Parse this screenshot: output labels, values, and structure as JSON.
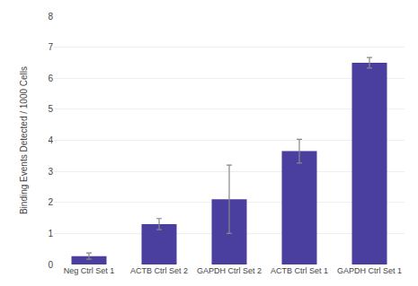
{
  "chart_data": {
    "type": "bar",
    "categories": [
      "Neg Ctrl Set 1",
      "ACTB Ctrl Set 2",
      "GAPDH Ctrl Set 2",
      "ACTB Ctrl Set 1",
      "GAPDH Ctrl Set 1"
    ],
    "values": [
      0.27,
      1.3,
      2.1,
      3.65,
      6.5
    ],
    "errors": [
      0.1,
      0.18,
      1.1,
      0.38,
      0.17
    ],
    "color": "#4a3f9f",
    "ylabel": "Binding Events Detected / 1000 Cells",
    "ylim": [
      0,
      8
    ],
    "yticks": [
      0,
      1,
      2,
      3,
      4,
      5,
      6,
      7,
      8
    ],
    "grid": true
  }
}
